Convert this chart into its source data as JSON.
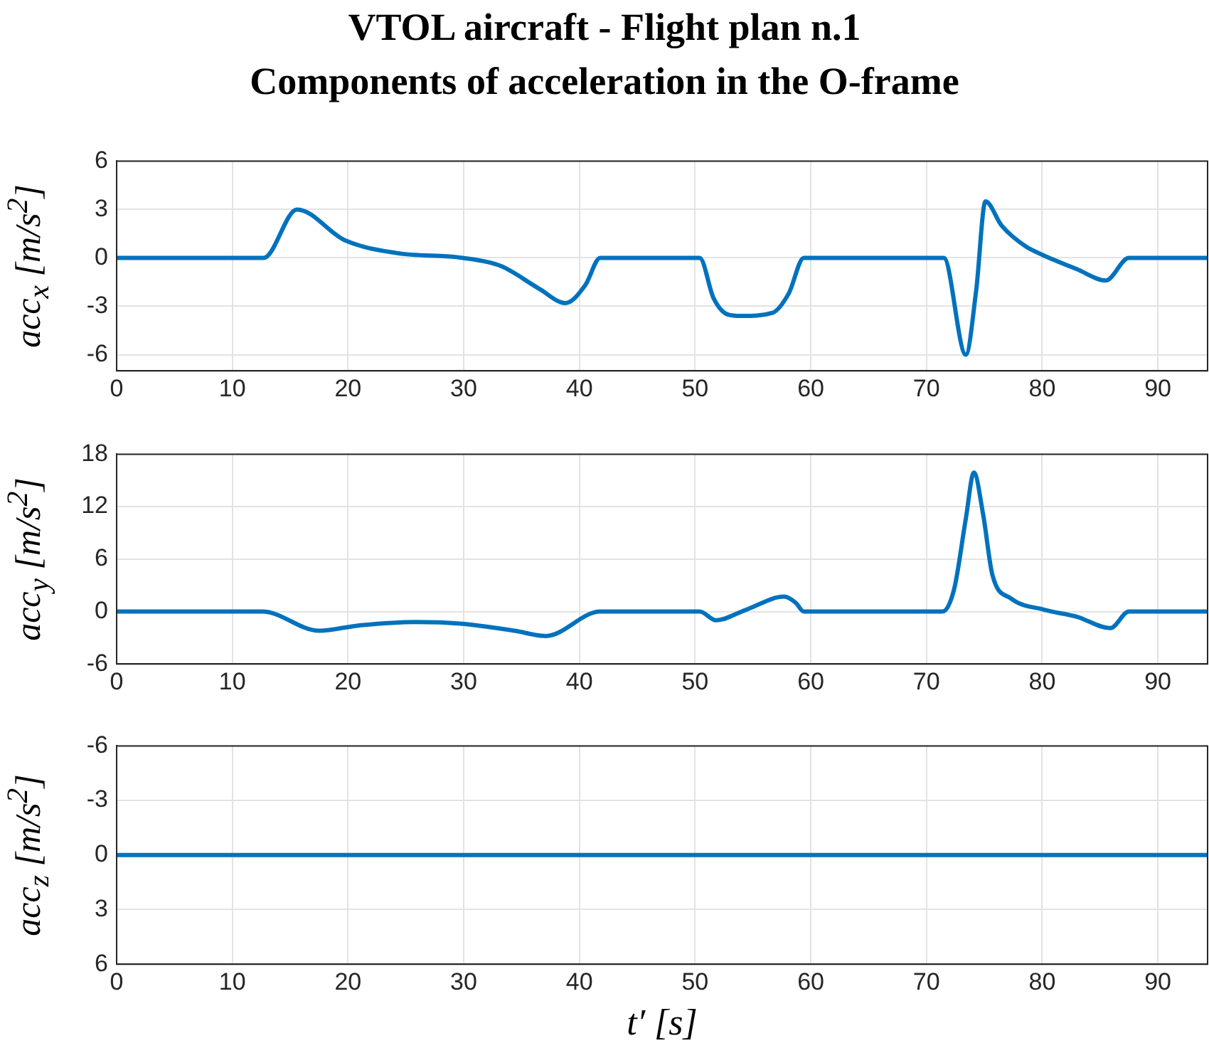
{
  "chart_data": [
    {
      "type": "line",
      "title": "VTOL aircraft - Flight plan n.1",
      "subtitle": "Components of acceleration in the O-frame",
      "ylabel": "acc$_{x}$ [m/s$^{2}$]",
      "xlim": [
        0,
        94.3
      ],
      "xticks": [
        0,
        10,
        20,
        30,
        40,
        50,
        60,
        70,
        80,
        90
      ],
      "ylim": [
        -7,
        6
      ],
      "yticks": [
        -6,
        -3,
        0,
        3,
        6
      ],
      "grid": true,
      "line_style": "solid",
      "marker": "none",
      "series": [
        {
          "color": "#0072bd",
          "x": [
            0,
            12.7,
            15.6,
            19.7,
            24.2,
            29.9,
            33.2,
            36.5,
            38.8,
            40.5,
            41.8,
            50.4,
            51.6,
            52.8,
            54.0,
            56.7,
            58.1,
            59.4,
            71.5,
            73.4,
            74.3,
            75.1,
            76.5,
            78.6,
            80.0,
            83.0,
            85.5,
            87.5,
            94.3
          ],
          "values": [
            0,
            0,
            3.0,
            1.1,
            0.3,
            0,
            -0.5,
            -1.9,
            -2.8,
            -1.7,
            0,
            0,
            -2.5,
            -3.5,
            -3.6,
            -3.4,
            -2.2,
            0,
            0,
            -6.0,
            -2.0,
            3.5,
            2.0,
            0.7,
            0.2,
            -0.7,
            -1.4,
            0,
            0
          ]
        }
      ]
    },
    {
      "type": "line",
      "ylabel": "acc$_{y}$ [m/s$^{2}$]",
      "xlim": [
        0,
        94.3
      ],
      "xticks": [
        0,
        10,
        20,
        30,
        40,
        50,
        60,
        70,
        80,
        90
      ],
      "ylim": [
        -6,
        18
      ],
      "yticks": [
        -6,
        0,
        6,
        12,
        18
      ],
      "grid": true,
      "line_style": "solid",
      "marker": "none",
      "series": [
        {
          "color": "#0072bd",
          "x": [
            0,
            12.6,
            17.5,
            20.9,
            25.8,
            29.9,
            34.4,
            37.1,
            41.8,
            50.4,
            51.8,
            54.4,
            57.7,
            58.7,
            59.4,
            71.4,
            72.4,
            73.4,
            74.1,
            74.9,
            75.7,
            77.3,
            80.2,
            83.0,
            85.9,
            87.5,
            94.3
          ],
          "values": [
            0,
            0,
            -2.2,
            -1.6,
            -1.2,
            -1.4,
            -2.2,
            -2.8,
            0,
            0,
            -1.0,
            0.2,
            1.7,
            1.0,
            0,
            0,
            2.6,
            10.6,
            15.9,
            11.1,
            4.2,
            1.5,
            0.2,
            -0.6,
            -1.9,
            0,
            0
          ]
        }
      ]
    },
    {
      "type": "line",
      "ylabel": "acc$_{z}$ [m/s$^{2}$]",
      "xlabel": "t′ [s]",
      "xlim": [
        0,
        94.3
      ],
      "xticks": [
        0,
        10,
        20,
        30,
        40,
        50,
        60,
        70,
        80,
        90
      ],
      "ylim": [
        6,
        -6
      ],
      "yticks": [
        -6,
        -3,
        0,
        3,
        6
      ],
      "grid": true,
      "line_style": "solid",
      "marker": "none",
      "series": [
        {
          "color": "#0072bd",
          "x": [
            0,
            94.3
          ],
          "values": [
            0,
            0
          ]
        }
      ]
    }
  ]
}
